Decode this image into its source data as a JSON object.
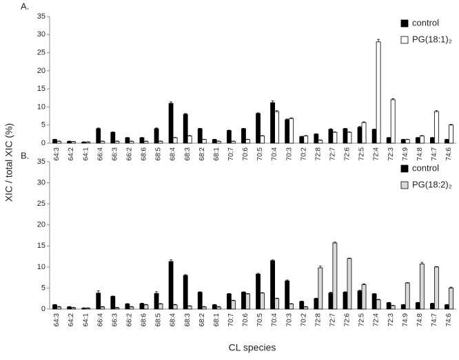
{
  "y_label": "XIC / total XIC (%)",
  "x_label": "CL species",
  "chart_data": [
    {
      "type": "bar",
      "panel_label": "A.",
      "categories": [
        "64:3",
        "64:2",
        "64:1",
        "66:4",
        "66:3",
        "66:2",
        "68:6",
        "68:5",
        "68:4",
        "68:3",
        "68:2",
        "68:1",
        "70:7",
        "70:6",
        "70:5",
        "70:4",
        "70:3",
        "70:2",
        "72:8",
        "72:7",
        "72:6",
        "72:5",
        "72:4",
        "72:3",
        "74:9",
        "74:8",
        "74:7",
        "74:6"
      ],
      "series": [
        {
          "name": "control",
          "color": "#000000",
          "values": [
            1,
            0.5,
            0.3,
            4,
            3,
            1.5,
            1.5,
            4,
            11,
            8,
            4,
            1,
            3.5,
            4,
            8.2,
            11.2,
            6.5,
            1.8,
            2.5,
            3.8,
            4,
            4.4,
            3.8,
            1.5,
            1,
            1.5,
            1.5,
            1
          ],
          "errors": [
            0.1,
            0.1,
            0.1,
            0.2,
            0.1,
            0.1,
            0.1,
            0.2,
            0.4,
            0.2,
            0.1,
            0.1,
            0.1,
            0.1,
            0.2,
            0.5,
            0.2,
            0.1,
            0.1,
            0.2,
            0.1,
            0.2,
            0.1,
            0.1,
            0.1,
            0.1,
            0.1,
            0.1
          ]
        },
        {
          "name": "PG(18:1)₂",
          "color": "#ffffff",
          "values": [
            0.5,
            0.4,
            0.3,
            0.5,
            0.5,
            0.5,
            0.5,
            0.5,
            1.5,
            2,
            1,
            0.5,
            0.5,
            1,
            2,
            8.7,
            6.8,
            2,
            0.8,
            3,
            3,
            5.7,
            28,
            12,
            1,
            2,
            8.7,
            5
          ],
          "errors": [
            0.1,
            0.1,
            0.1,
            0.1,
            0.1,
            0.1,
            0.1,
            0.1,
            0.1,
            0.1,
            0.1,
            0.1,
            0.1,
            0.1,
            0.1,
            0.3,
            0.2,
            0.1,
            0.1,
            0.1,
            0.1,
            0.2,
            0.7,
            0.3,
            0.1,
            0.1,
            0.3,
            0.2
          ]
        }
      ],
      "ylim": [
        0,
        35
      ],
      "yticks": [
        0,
        5,
        10,
        15,
        20,
        25,
        30,
        35
      ]
    },
    {
      "type": "bar",
      "panel_label": "B.",
      "categories": [
        "64:3",
        "64:2",
        "64:1",
        "66:4",
        "66:3",
        "66:2",
        "68:6",
        "68:5",
        "68:4",
        "68:3",
        "68:2",
        "68:1",
        "70:7",
        "70:6",
        "70:5",
        "70:4",
        "70:3",
        "70:2",
        "72:8",
        "72:7",
        "72:6",
        "72:5",
        "72:4",
        "72:3",
        "74:9",
        "74:8",
        "74:7",
        "74:6"
      ],
      "series": [
        {
          "name": "control",
          "color": "#000000",
          "values": [
            1,
            0.5,
            0.2,
            3.8,
            3,
            1.2,
            1.3,
            3.7,
            11.3,
            8,
            4,
            1,
            3.6,
            4,
            8.3,
            11.5,
            6.7,
            1.8,
            2.5,
            3.8,
            4,
            4.3,
            3.6,
            1.5,
            1,
            1.5,
            1.3,
            1
          ],
          "errors": [
            0.1,
            0.1,
            0.1,
            0.5,
            0.1,
            0.1,
            0.1,
            0.4,
            0.4,
            0.2,
            0.1,
            0.1,
            0.1,
            0.1,
            0.2,
            0.2,
            0.2,
            0.1,
            0.1,
            0.2,
            0.1,
            0.2,
            0.1,
            0.1,
            0.1,
            0.1,
            0.1,
            0.1
          ]
        },
        {
          "name": "PG(18:2)₂",
          "color": "#d9d9d9",
          "values": [
            0.5,
            0.3,
            0.2,
            0.5,
            0.3,
            0.5,
            1,
            1.2,
            1,
            0.7,
            0.5,
            0.5,
            2,
            3.6,
            3.8,
            2.5,
            1.2,
            0.5,
            9.8,
            15.7,
            12,
            5.8,
            2.2,
            0.8,
            6.2,
            10.7,
            10,
            5
          ],
          "errors": [
            0.1,
            0.1,
            0.1,
            0.1,
            0.1,
            0.1,
            0.1,
            0.1,
            0.1,
            0.1,
            0.1,
            0.1,
            0.1,
            0.1,
            0.1,
            0.1,
            0.1,
            0.1,
            0.4,
            0.2,
            0.1,
            0.2,
            0.1,
            0.1,
            0.1,
            0.4,
            0.1,
            0.2
          ]
        }
      ],
      "ylim": [
        0,
        35
      ],
      "yticks": [
        0,
        5,
        10,
        15,
        20,
        25,
        30,
        35
      ]
    }
  ]
}
